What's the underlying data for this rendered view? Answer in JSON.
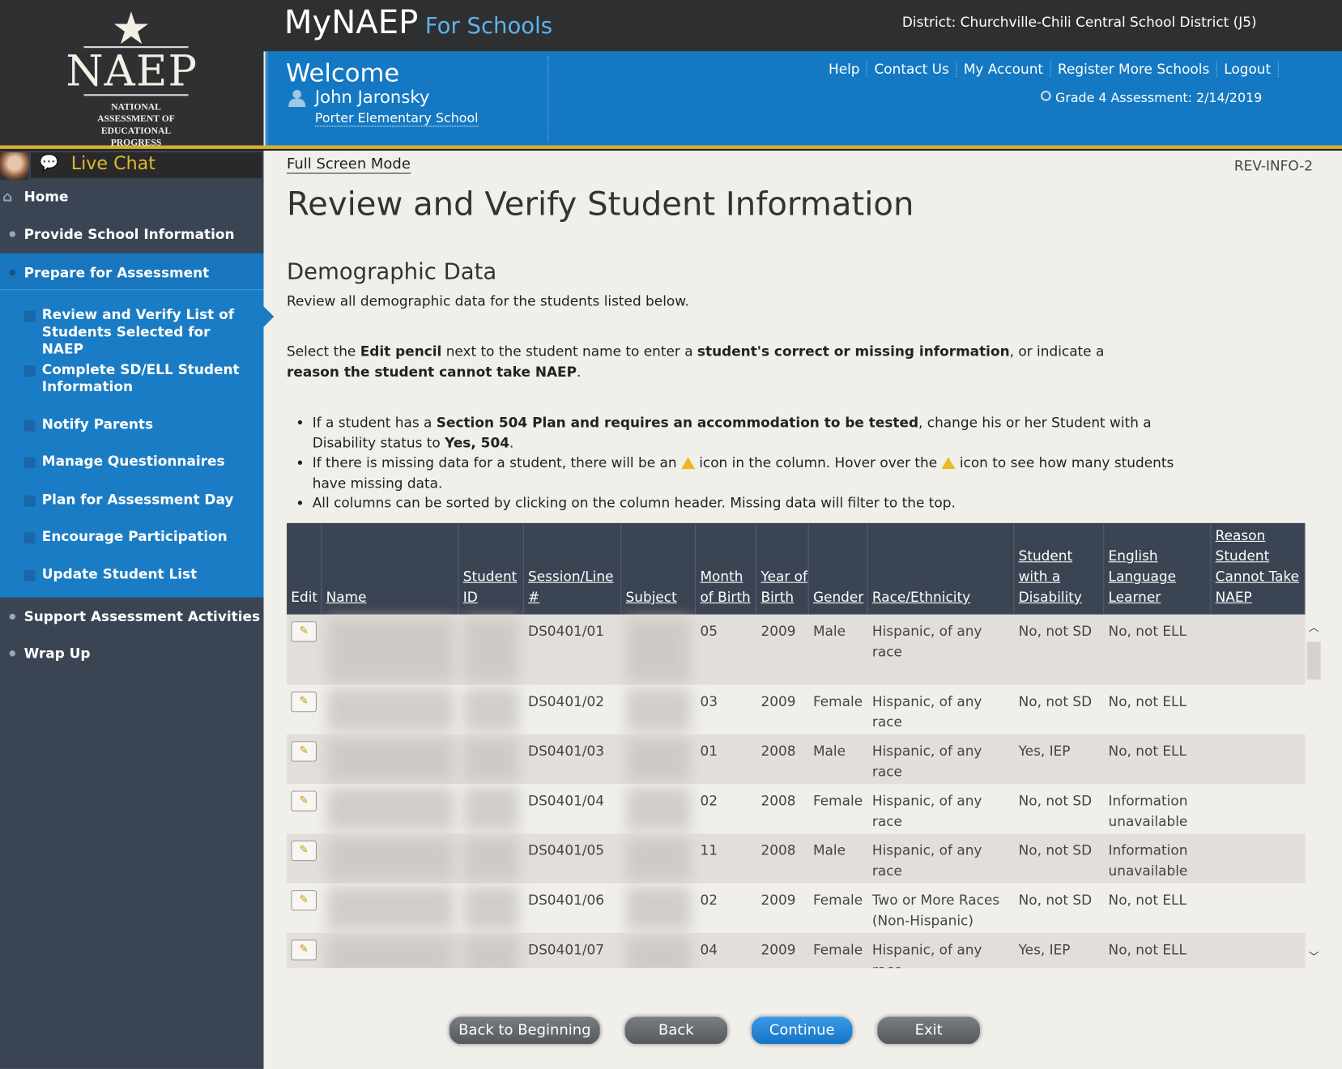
{
  "header": {
    "logo_text": "NAEP",
    "logo_subtitle": "NATIONAL ASSESSMENT OF EDUCATIONAL PROGRESS",
    "app_name": "MyNAEP",
    "app_suffix": "For Schools",
    "district": "District: Churchville-Chili Central School District (J5)",
    "welcome": "Welcome",
    "user_name": "John Jaronsky",
    "school": "Porter Elementary School",
    "links": [
      "Help",
      "Contact Us",
      "My Account",
      "Register More Schools",
      "Logout"
    ],
    "assessment": "Grade 4 Assessment: 2/14/2019"
  },
  "sidebar": {
    "live_chat": "Live Chat",
    "items": [
      "Home",
      "Provide School Information",
      "Prepare for Assessment",
      "Review and Verify List of Students Selected for NAEP",
      "Complete SD/ELL Student Information",
      "Notify Parents",
      "Manage Questionnaires",
      "Plan for Assessment Day",
      "Encourage Participation",
      "Update Student List",
      "Support Assessment Activities",
      "Wrap Up"
    ],
    "active": "Review and Verify List of Students Selected for NAEP"
  },
  "main": {
    "full_screen": "Full Screen Mode",
    "page_code": "REV-INFO-2",
    "title": "Review and Verify Student Information",
    "section": "Demographic Data",
    "section_sub": "Review all demographic data for the students listed below.",
    "instruction": {
      "p1": "Select the ",
      "b1": "Edit pencil",
      "p2": " next to the student name to enter a ",
      "b2": "student's correct or missing information",
      "p3": ", or indicate a ",
      "b3": "reason the student cannot take NAEP",
      "p4": "."
    },
    "bullets": {
      "b1a": "If a student has a ",
      "b1b": "Section 504 Plan and requires an accommodation to be tested",
      "b1c": ", change his or her Student with a Disability status to ",
      "b1d": "Yes, 504",
      "b1e": ".",
      "b2a": "If there is missing data for a student, there will be an ",
      "b2b": " icon in the column. Hover over the ",
      "b2c": " icon to see how many students have missing data.",
      "b3": "All columns can be sorted by clicking on the column header. Missing data will filter to the top."
    }
  },
  "table": {
    "columns": [
      "Edit",
      "Name",
      "Student ID",
      "Session/Line #",
      "Subject",
      "Month of Birth",
      "Year of Birth",
      "Gender",
      "Race/Ethnicity",
      "Student with a Disability",
      "English Language Learner",
      "Reason Student Cannot Take NAEP"
    ],
    "rows": [
      {
        "session": "DS0401/01",
        "month": "05",
        "year": "2009",
        "gender": "Male",
        "race": "Hispanic, of any race",
        "sd": "No, not SD",
        "ell": "No, not ELL",
        "reason": ""
      },
      {
        "session": "DS0401/02",
        "month": "03",
        "year": "2009",
        "gender": "Female",
        "race": "Hispanic, of any race",
        "sd": "No, not SD",
        "ell": "No, not ELL",
        "reason": ""
      },
      {
        "session": "DS0401/03",
        "month": "01",
        "year": "2008",
        "gender": "Male",
        "race": "Hispanic, of any race",
        "sd": "Yes, IEP",
        "ell": "No, not ELL",
        "reason": ""
      },
      {
        "session": "DS0401/04",
        "month": "02",
        "year": "2008",
        "gender": "Female",
        "race": "Hispanic, of any race",
        "sd": "No, not SD",
        "ell": "Information unavailable",
        "reason": ""
      },
      {
        "session": "DS0401/05",
        "month": "11",
        "year": "2008",
        "gender": "Male",
        "race": "Hispanic, of any race",
        "sd": "No, not SD",
        "ell": "Information unavailable",
        "reason": ""
      },
      {
        "session": "DS0401/06",
        "month": "02",
        "year": "2009",
        "gender": "Female",
        "race": "Two or More Races (Non-Hispanic)",
        "sd": "No, not SD",
        "ell": "No, not ELL",
        "reason": ""
      },
      {
        "session": "DS0401/07",
        "month": "04",
        "year": "2009",
        "gender": "Female",
        "race": "Hispanic, of any race",
        "sd": "Yes, IEP",
        "ell": "No, not ELL",
        "reason": ""
      }
    ]
  },
  "buttons": {
    "back_to_beginning": "Back to Beginning",
    "back": "Back",
    "continue": "Continue",
    "exit": "Exit"
  },
  "colors": {
    "header_blue": "#1479c2",
    "sidebar": "#3b4452",
    "gold": "#d5b12a",
    "continue": "#1a86d6"
  }
}
